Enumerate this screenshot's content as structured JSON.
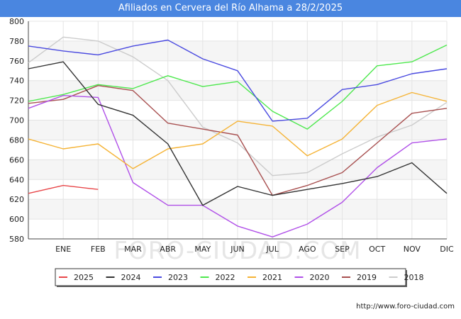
{
  "title": "Afiliados en Cervera del Río Alhama a 28/2/2025",
  "source": "http://www.foro-ciudad.com",
  "watermark": "FORO-CIUDAD.COM",
  "chart_data": {
    "type": "line",
    "categories": [
      "",
      "ENE",
      "FEB",
      "MAR",
      "ABR",
      "MAY",
      "JUN",
      "JUL",
      "AGO",
      "SEP",
      "OCT",
      "NOV",
      "DIC"
    ],
    "ylim": [
      580,
      800
    ],
    "yticks": [
      580,
      600,
      620,
      640,
      660,
      680,
      700,
      720,
      740,
      760,
      780,
      800
    ],
    "grid": true,
    "legend_position": "bottom",
    "series": [
      {
        "name": "2025",
        "color": "#e8474a",
        "values": [
          626,
          634,
          630,
          null,
          null,
          null,
          null,
          null,
          null,
          null,
          null,
          null,
          null
        ]
      },
      {
        "name": "2024",
        "color": "#333333",
        "values": [
          752,
          759,
          716,
          705,
          676,
          614,
          633,
          624,
          630,
          636,
          643,
          657,
          626
        ]
      },
      {
        "name": "2023",
        "color": "#4a4ae0",
        "values": [
          775,
          770,
          766,
          775,
          781,
          762,
          750,
          699,
          702,
          731,
          736,
          747,
          752
        ]
      },
      {
        "name": "2022",
        "color": "#4de84d",
        "values": [
          719,
          726,
          736,
          732,
          745,
          734,
          739,
          709,
          691,
          719,
          755,
          759,
          776
        ]
      },
      {
        "name": "2021",
        "color": "#f5b335",
        "values": [
          681,
          671,
          676,
          651,
          671,
          676,
          699,
          694,
          664,
          681,
          715,
          728,
          719
        ]
      },
      {
        "name": "2020",
        "color": "#b050e8",
        "values": [
          712,
          725,
          723,
          637,
          614,
          614,
          593,
          582,
          595,
          617,
          652,
          677,
          681
        ]
      },
      {
        "name": "2019",
        "color": "#a85050",
        "values": [
          717,
          721,
          735,
          730,
          697,
          691,
          685,
          624,
          634,
          647,
          677,
          707,
          712
        ]
      },
      {
        "name": "2018",
        "color": "#cccccc",
        "values": [
          758,
          784,
          780,
          764,
          740,
          693,
          677,
          644,
          647,
          666,
          683,
          695,
          718
        ]
      }
    ]
  }
}
